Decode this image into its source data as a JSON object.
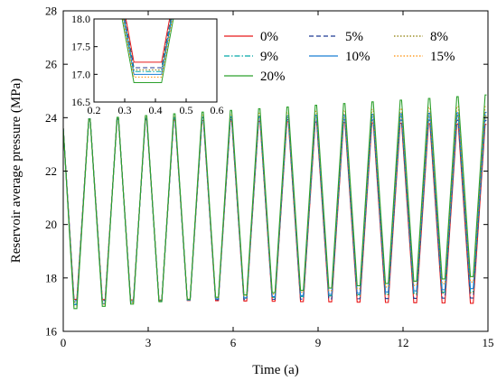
{
  "chart_data": {
    "type": "line",
    "xlabel": "Time (a)",
    "ylabel": "Reservoir average pressure (MPa)",
    "xlim": [
      0,
      15
    ],
    "ylim": [
      16,
      28
    ],
    "xticks": [
      0,
      3,
      6,
      9,
      12,
      15
    ],
    "yticks": [
      16,
      18,
      20,
      22,
      24,
      26,
      28
    ],
    "grid": false,
    "legend_position": "top-right",
    "cycle": {
      "start_pressure": 23.6,
      "first_low_time": 0.38,
      "period": 1.0,
      "low_duration": 0.1,
      "high_duration": 0.05
    },
    "series": [
      {
        "name": "0%",
        "color": "#e8191a",
        "dash": "solid",
        "peak_start": 23.95,
        "peak_end": 23.75,
        "trough_start": 17.2,
        "trough_end": 17.05
      },
      {
        "name": "5%",
        "color": "#1f3a93",
        "dash": "dashed",
        "peak_start": 23.95,
        "peak_end": 23.9,
        "trough_start": 17.15,
        "trough_end": 17.25
      },
      {
        "name": "8%",
        "color": "#8a7a00",
        "dash": "dotted",
        "peak_start": 23.95,
        "peak_end": 24.05,
        "trough_start": 17.1,
        "trough_end": 17.45
      },
      {
        "name": "9%",
        "color": "#00a8a8",
        "dash": "dashdot",
        "peak_start": 23.95,
        "peak_end": 24.1,
        "trough_start": 17.05,
        "trough_end": 17.5
      },
      {
        "name": "10%",
        "color": "#1a7fd4",
        "dash": "solid",
        "peak_start": 23.95,
        "peak_end": 24.2,
        "trough_start": 17.0,
        "trough_end": 17.6
      },
      {
        "name": "15%",
        "color": "#ff8c00",
        "dash": "dotted",
        "peak_start": 23.95,
        "peak_end": 24.45,
        "trough_start": 16.95,
        "trough_end": 17.85
      },
      {
        "name": "20%",
        "color": "#2ca02c",
        "dash": "solid",
        "peak_start": 23.95,
        "peak_end": 24.85,
        "trough_start": 16.85,
        "trough_end": 18.05
      }
    ],
    "inset": {
      "xlim": [
        0.2,
        0.6
      ],
      "ylim": [
        16.5,
        18.0
      ],
      "xticks": [
        0.2,
        0.3,
        0.4,
        0.5,
        0.6
      ],
      "yticks": [
        16.5,
        17.0,
        17.5,
        18.0
      ],
      "troughs": [
        17.22,
        17.12,
        17.08,
        17.05,
        17.0,
        16.95,
        16.85
      ],
      "valley_start": 0.33,
      "valley_end": 0.42,
      "slope_per_unit": 30
    }
  }
}
